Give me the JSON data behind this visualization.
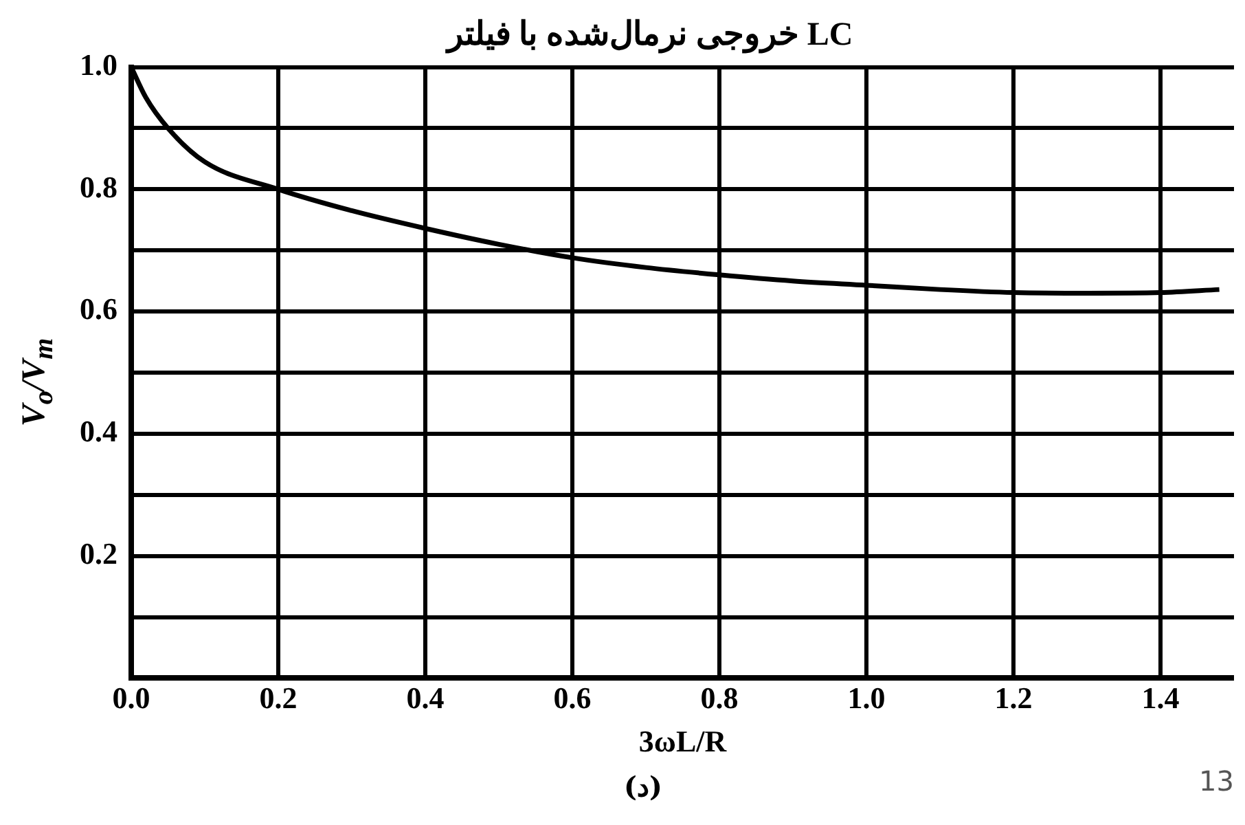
{
  "chart_data": {
    "type": "line",
    "title": "خروجی نرمال‌شده با فیلتر LC",
    "xlabel": "3ωL/R",
    "ylabel": "V$_{o}$/V$_{m}$",
    "x": [
      0,
      0.02,
      0.05,
      0.1,
      0.2,
      0.3,
      0.4,
      0.5,
      0.6,
      0.7,
      0.8,
      0.9,
      1.0,
      1.1,
      1.2,
      1.3,
      1.4,
      1.48
    ],
    "series": [
      {
        "color": "#000000",
        "values": [
          1.0,
          0.95,
          0.9,
          0.845,
          0.8,
          0.765,
          0.736,
          0.71,
          0.688,
          0.672,
          0.66,
          0.65,
          0.643,
          0.636,
          0.631,
          0.63,
          0.631,
          0.636
        ]
      }
    ],
    "xlim": [
      0,
      1.5
    ],
    "xticks": [
      "0.0",
      0.2,
      0.4,
      0.6,
      0.8,
      "1.0",
      1.2,
      1.4
    ],
    "ylim": [
      0,
      1
    ],
    "yticks": [
      {
        "value": 0,
        "label": null
      },
      {
        "value": 0.1,
        "label": null
      },
      0.2,
      {
        "value": 0.3,
        "label": null
      },
      0.4,
      {
        "value": 0.5,
        "label": null
      },
      0.6,
      {
        "value": 0.7,
        "label": null
      },
      0.8,
      {
        "value": 0.9,
        "label": null
      },
      "1.0"
    ],
    "grid": true,
    "legend": false,
    "marker": "none",
    "line_style": "solid",
    "annotations": [
      "13",
      "(د)"
    ]
  }
}
